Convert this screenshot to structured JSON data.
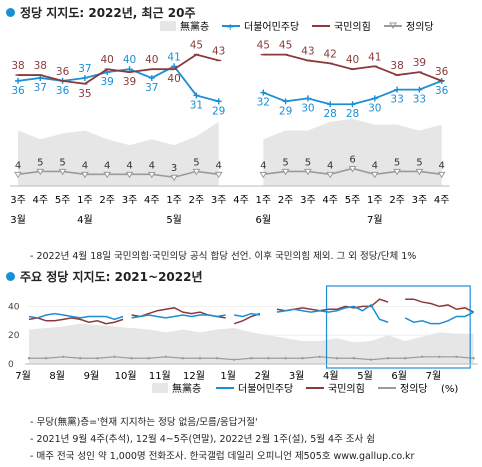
{
  "section1": {
    "title": "정당 지지도: 2022년, 최근 20주"
  },
  "section2": {
    "title": "주요 정당 지지도: 2021~2022년"
  },
  "legend": {
    "none": "無黨층",
    "dem": "더불어민주당",
    "ppp": "국민의힘",
    "justice": "정의당",
    "unit": "(%)"
  },
  "colors": {
    "dem": "#1a8fd6",
    "ppp": "#8b3a3a",
    "justice": "#9a9a9a",
    "none": "#e6e6e6",
    "highlight": "#1a8fd6"
  },
  "note1": "- 2022년 4월 18일 국민의힘·국민의당 공식 합당 선언. 이후 국민의힘 제외. 그 외 정당/단체 1%",
  "notes2": [
    "- 무당(無黨)층='현재 지지하는 정당 없음/모름/응답거절'",
    "- 2021년 9월 4주(추석), 12월 4~5주(연말), 2022년 2월 1주(설), 5월 4주 조사 쉼",
    "- 매주 전국 성인 약 1,000명 전화조사. 한국갤럽 데일리 오피니언 제505호 www.gallup.co.kr"
  ],
  "chart_data": [
    {
      "type": "line",
      "title": "정당 지지도: 2022년, 최근 20주",
      "x_weeks": [
        "3주",
        "4주",
        "5주",
        "1주",
        "2주",
        "3주",
        "4주",
        "1주",
        "2주",
        "3주",
        "4주",
        "1주",
        "2주",
        "3주",
        "4주",
        "5주",
        "1주",
        "2주",
        "3주",
        "4주"
      ],
      "x_months": [
        {
          "label": "3월",
          "index": 0
        },
        {
          "label": "4월",
          "index": 3
        },
        {
          "label": "5월",
          "index": 7
        },
        {
          "label": "6월",
          "index": 11
        },
        {
          "label": "7월",
          "index": 16
        }
      ],
      "ylim": [
        0,
        50
      ],
      "series": [
        {
          "name": "더불어민주당",
          "key": "dem",
          "values": [
            36,
            37,
            36,
            37,
            39,
            40,
            37,
            41,
            31,
            29,
            null,
            32,
            29,
            30,
            28,
            28,
            30,
            33,
            33,
            36
          ]
        },
        {
          "name": "국민의힘",
          "key": "ppp",
          "values": [
            38,
            38,
            36,
            35,
            40,
            39,
            40,
            40,
            45,
            43,
            null,
            45,
            45,
            43,
            42,
            40,
            41,
            38,
            39,
            36
          ]
        },
        {
          "name": "정의당",
          "key": "justice",
          "values": [
            4,
            5,
            5,
            4,
            4,
            4,
            4,
            3,
            5,
            4,
            null,
            4,
            5,
            5,
            4,
            6,
            4,
            5,
            5,
            4
          ]
        },
        {
          "name": "無黨층",
          "key": "none",
          "values": [
            19,
            16,
            18,
            19,
            16,
            14,
            16,
            14,
            17,
            22,
            null,
            16,
            19,
            19,
            22,
            23,
            21,
            21,
            19,
            21
          ]
        }
      ]
    },
    {
      "type": "line",
      "title": "주요 정당 지지도: 2021~2022년",
      "x_months": [
        "7월",
        "8월",
        "9월",
        "10월",
        "11월",
        "12월",
        "1월",
        "2월",
        "3월",
        "4월",
        "5월",
        "6월",
        "7월"
      ],
      "x_unit": "months since 2021년 7월",
      "ylim": [
        0,
        50
      ],
      "yticks": [
        0,
        20,
        40
      ],
      "highlight_range": [
        8.7,
        12.9
      ],
      "series": [
        {
          "name": "더불어민주당",
          "key": "dem",
          "segments": [
            [
              [
                0,
                33
              ],
              [
                0.25,
                32
              ],
              [
                0.5,
                34
              ],
              [
                0.75,
                35
              ],
              [
                1,
                34
              ],
              [
                1.25,
                33
              ],
              [
                1.5,
                32
              ],
              [
                1.75,
                33
              ],
              [
                2,
                33
              ],
              [
                2.25,
                33
              ],
              [
                2.5,
                31
              ],
              [
                2.75,
                33
              ]
            ],
            [
              [
                3,
                32
              ],
              [
                3.25,
                33
              ],
              [
                3.5,
                34
              ],
              [
                3.75,
                33
              ],
              [
                4,
                32
              ],
              [
                4.25,
                33
              ],
              [
                4.5,
                34
              ],
              [
                4.75,
                33
              ],
              [
                5,
                34
              ],
              [
                5.25,
                34
              ],
              [
                5.5,
                33
              ],
              [
                5.75,
                34
              ]
            ],
            [
              [
                6,
                34
              ],
              [
                6.25,
                33
              ],
              [
                6.5,
                35
              ],
              [
                6.75,
                34
              ]
            ],
            [
              [
                7.25,
                36
              ],
              [
                7.5,
                37
              ],
              [
                7.75,
                38
              ],
              [
                8,
                37
              ],
              [
                8.25,
                36
              ],
              [
                8.5,
                37
              ],
              [
                8.75,
                36
              ],
              [
                9,
                37
              ],
              [
                9.25,
                39
              ],
              [
                9.5,
                40
              ],
              [
                9.75,
                37
              ],
              [
                10,
                41
              ],
              [
                10.25,
                31
              ],
              [
                10.5,
                29
              ]
            ],
            [
              [
                11,
                32
              ],
              [
                11.25,
                29
              ],
              [
                11.5,
                30
              ],
              [
                11.75,
                28
              ],
              [
                12,
                28
              ],
              [
                12.25,
                30
              ],
              [
                12.5,
                33
              ],
              [
                12.75,
                33
              ],
              [
                13,
                36
              ]
            ]
          ]
        },
        {
          "name": "국민의힘",
          "key": "ppp",
          "segments": [
            [
              [
                0,
                31
              ],
              [
                0.25,
                32
              ],
              [
                0.5,
                30
              ],
              [
                0.75,
                30
              ],
              [
                1,
                31
              ],
              [
                1.25,
                32
              ],
              [
                1.5,
                31
              ],
              [
                1.75,
                29
              ],
              [
                2,
                30
              ],
              [
                2.25,
                28
              ],
              [
                2.5,
                29
              ],
              [
                2.75,
                31
              ]
            ],
            [
              [
                3,
                34
              ],
              [
                3.25,
                33
              ],
              [
                3.5,
                35
              ],
              [
                3.75,
                37
              ],
              [
                4,
                38
              ],
              [
                4.25,
                39
              ],
              [
                4.5,
                36
              ],
              [
                4.75,
                35
              ],
              [
                5,
                36
              ],
              [
                5.25,
                34
              ],
              [
                5.5,
                33
              ],
              [
                5.75,
                32
              ]
            ],
            [
              [
                6,
                28
              ],
              [
                6.25,
                30
              ],
              [
                6.5,
                33
              ],
              [
                6.75,
                35
              ]
            ],
            [
              [
                7.25,
                38
              ],
              [
                7.5,
                37
              ],
              [
                7.75,
                38
              ],
              [
                8,
                39
              ],
              [
                8.25,
                38
              ],
              [
                8.5,
                37
              ],
              [
                8.75,
                38
              ],
              [
                9,
                38
              ],
              [
                9.25,
                40
              ],
              [
                9.5,
                39
              ],
              [
                9.75,
                40
              ],
              [
                10,
                40
              ],
              [
                10.25,
                45
              ],
              [
                10.5,
                43
              ]
            ],
            [
              [
                11,
                45
              ],
              [
                11.25,
                45
              ],
              [
                11.5,
                43
              ],
              [
                11.75,
                42
              ],
              [
                12,
                40
              ],
              [
                12.25,
                41
              ],
              [
                12.5,
                38
              ],
              [
                12.75,
                39
              ],
              [
                13,
                36
              ]
            ]
          ]
        },
        {
          "name": "정의당",
          "key": "justice",
          "values": [
            [
              0,
              4
            ],
            [
              0.5,
              4
            ],
            [
              1,
              5
            ],
            [
              1.5,
              4
            ],
            [
              2,
              4
            ],
            [
              2.5,
              5
            ],
            [
              3,
              4
            ],
            [
              3.5,
              4
            ],
            [
              4,
              5
            ],
            [
              4.5,
              4
            ],
            [
              5,
              4
            ],
            [
              5.5,
              4
            ],
            [
              6,
              3
            ],
            [
              6.5,
              4
            ],
            [
              7,
              4
            ],
            [
              7.5,
              4
            ],
            [
              8,
              4
            ],
            [
              8.5,
              5
            ],
            [
              9,
              4
            ],
            [
              9.5,
              4
            ],
            [
              10,
              3
            ],
            [
              10.5,
              4
            ],
            [
              11,
              4
            ],
            [
              11.5,
              5
            ],
            [
              12,
              5
            ],
            [
              12.5,
              5
            ],
            [
              13,
              4
            ]
          ]
        },
        {
          "name": "無黨층",
          "key": "none",
          "values": [
            [
              0,
              24
            ],
            [
              0.5,
              25
            ],
            [
              1,
              26
            ],
            [
              1.5,
              28
            ],
            [
              2,
              27
            ],
            [
              2.5,
              26
            ],
            [
              3,
              25
            ],
            [
              3.5,
              24
            ],
            [
              4,
              22
            ],
            [
              4.5,
              24
            ],
            [
              5,
              22
            ],
            [
              5.5,
              24
            ],
            [
              6,
              25
            ],
            [
              6.5,
              22
            ],
            [
              7,
              20
            ],
            [
              7.5,
              18
            ],
            [
              8,
              16
            ],
            [
              8.5,
              16
            ],
            [
              9,
              18
            ],
            [
              9.5,
              15
            ],
            [
              10,
              16
            ],
            [
              10.5,
              20
            ],
            [
              11,
              16
            ],
            [
              11.5,
              19
            ],
            [
              12,
              22
            ],
            [
              12.5,
              21
            ],
            [
              13,
              21
            ]
          ]
        }
      ]
    }
  ]
}
